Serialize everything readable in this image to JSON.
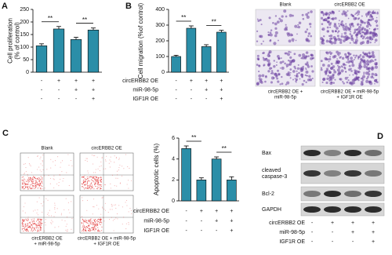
{
  "chart_data": [
    {
      "type": "bar",
      "panel": "A",
      "ylabel": [
        "Cell proliferation",
        "(% of control)"
      ],
      "color": "#2b8ea8",
      "values": [
        105,
        172,
        130,
        168
      ],
      "errors": [
        8,
        10,
        9,
        8
      ],
      "ylim": [
        0,
        250
      ],
      "yticks": [
        0,
        50,
        100,
        150,
        200,
        250
      ],
      "annotations": [
        "**",
        "**"
      ],
      "conditions": [
        {
          "values": [
            "-",
            "+",
            "+",
            "+"
          ]
        },
        {
          "values": [
            "-",
            "-",
            "+",
            "+"
          ]
        },
        {
          "values": [
            "-",
            "-",
            "-",
            "+"
          ]
        }
      ]
    },
    {
      "type": "bar",
      "panel": "B",
      "ylabel": [
        "Cell migration (%of control)"
      ],
      "color": "#2b8ea8",
      "values": [
        100,
        280,
        163,
        255
      ],
      "errors": [
        8,
        15,
        12,
        12
      ],
      "ylim": [
        0,
        400
      ],
      "yticks": [
        0,
        100,
        200,
        300,
        400
      ],
      "annotations": [
        "**",
        "**"
      ],
      "conditions": [
        {
          "name": "circERBB2 OE",
          "values": [
            "-",
            "+",
            "+",
            "+"
          ]
        },
        {
          "name": "miR-98-5p",
          "values": [
            "-",
            "-",
            "+",
            "+"
          ]
        },
        {
          "name": "IGF1R OE",
          "values": [
            "-",
            "-",
            "-",
            "+"
          ]
        }
      ]
    },
    {
      "type": "bar",
      "panel": "C",
      "ylabel": [
        "Apoptotic cells (%)"
      ],
      "color": "#2b8ea8",
      "values": [
        5.0,
        2.0,
        4.0,
        2.0
      ],
      "errors": [
        0.25,
        0.2,
        0.2,
        0.3
      ],
      "ylim": [
        0,
        6
      ],
      "yticks": [
        0,
        2,
        4,
        6
      ],
      "annotations": [
        "**",
        "**"
      ],
      "conditions": [
        {
          "name": "circERBB2 OE",
          "values": [
            "-",
            "+",
            "+",
            "+"
          ]
        },
        {
          "name": "miR-98-5p",
          "values": [
            "-",
            "-",
            "+",
            "+"
          ]
        },
        {
          "name": "IGF1R OE",
          "values": [
            "-",
            "-",
            "-",
            "+"
          ]
        }
      ]
    }
  ],
  "migration_images": {
    "titles": [
      "Blank",
      "circERBB2 OE"
    ],
    "captions": [
      [
        "circERBB2 OE +",
        "miR-98-5p"
      ],
      [
        "circERBB2 OE + miR-98-5p",
        "+ IGF1R OE"
      ]
    ]
  },
  "flow_images": {
    "titles": [
      "Blank",
      "circERBB2 OE"
    ],
    "captions": [
      [
        "circERBB2 OE",
        "+ miR-98-5p"
      ],
      [
        "circERBB2 OE + miR-98-5p",
        "+ IGF1R OE"
      ]
    ]
  },
  "blot": {
    "panel": "D",
    "bands": [
      [
        "Bax"
      ],
      [
        "cleaved",
        "caspase-3"
      ],
      [
        "Bcl-2"
      ],
      [
        "GAPDH"
      ]
    ],
    "conditions": [
      {
        "name": "circERBB2 OE",
        "values": [
          "-",
          "+",
          "+",
          "+"
        ]
      },
      {
        "name": "miR-98-5p",
        "values": [
          "-",
          "-",
          "+",
          "+"
        ]
      },
      {
        "name": "IGF1R OE",
        "values": [
          "-",
          "-",
          "-",
          "+"
        ]
      }
    ]
  }
}
